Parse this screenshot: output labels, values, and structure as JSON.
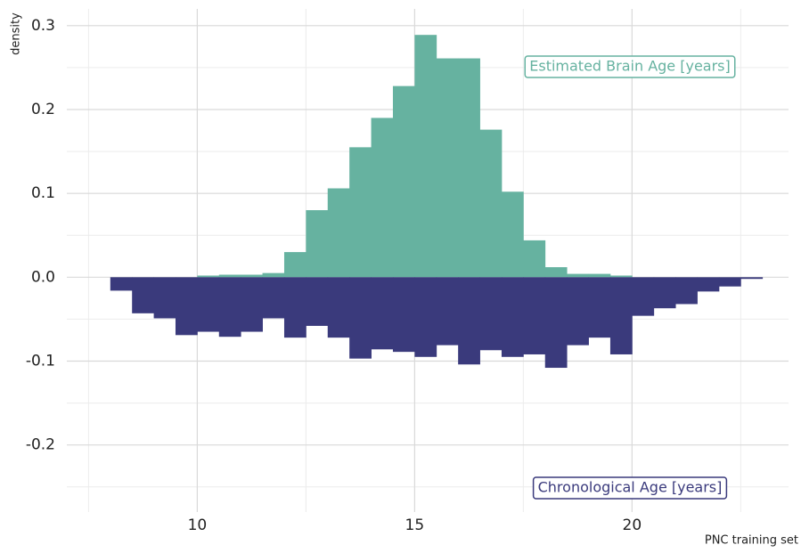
{
  "chart_data": {
    "type": "histogram",
    "y_label": "density",
    "x_label": "PNC training set",
    "bins": [
      8,
      8.5,
      9,
      9.5,
      10,
      10.5,
      11,
      11.5,
      12,
      12.5,
      13,
      13.5,
      14,
      14.5,
      15,
      15.5,
      16,
      16.5,
      17,
      17.5,
      18,
      18.5,
      19,
      19.5,
      20,
      20.5,
      21,
      21.5,
      22,
      22.5,
      23
    ],
    "series": [
      {
        "name": "Estimated Brain Age [years]",
        "color": "#66b2a0",
        "values": [
          0,
          0,
          0,
          0,
          0.002,
          0.003,
          0.003,
          0.005,
          0.03,
          0.08,
          0.106,
          0.155,
          0.19,
          0.228,
          0.289,
          0.261,
          0.261,
          0.176,
          0.102,
          0.044,
          0.012,
          0.004,
          0.004,
          0.002,
          0,
          0,
          0,
          0,
          0,
          0
        ]
      },
      {
        "name": "Chronological Age [years]",
        "color": "#3a3a7c",
        "values": [
          -0.016,
          -0.043,
          -0.049,
          -0.069,
          -0.065,
          -0.071,
          -0.065,
          -0.049,
          -0.072,
          -0.058,
          -0.072,
          -0.097,
          -0.086,
          -0.089,
          -0.095,
          -0.081,
          -0.104,
          -0.087,
          -0.095,
          -0.092,
          -0.108,
          -0.081,
          -0.072,
          -0.092,
          -0.046,
          -0.037,
          -0.032,
          -0.017,
          -0.011,
          -0.002
        ]
      }
    ],
    "xlim": [
      7,
      23.6
    ],
    "ylim": [
      -0.28,
      0.32
    ],
    "xticks": [
      10,
      15,
      20
    ],
    "x_minor_ticks": [
      7.5,
      12.5,
      17.5,
      22.5
    ],
    "yticks": [
      -0.2,
      -0.1,
      {
        "value": 0,
        "label": "0.0"
      },
      0.1,
      0.2,
      0.3
    ],
    "y_minor_ticks": [
      -0.25,
      -0.15,
      -0.05,
      0.05,
      0.15,
      0.25
    ],
    "grid": true
  }
}
